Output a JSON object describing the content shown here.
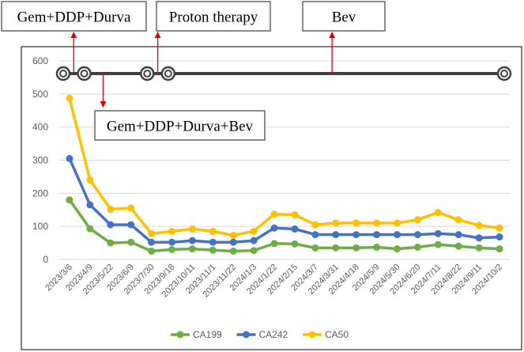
{
  "chart_data": {
    "type": "line",
    "title": "",
    "xlabel": "",
    "ylabel": "",
    "ylim": [
      0,
      600
    ],
    "yticks": [
      0,
      100,
      200,
      300,
      400,
      500,
      600
    ],
    "grid": true,
    "legend_position": "bottom",
    "categories": [
      "2023/3/6",
      "2023/4/9",
      "2023/5/22",
      "2023/6/9",
      "2023/7/30",
      "2023/9/18",
      "2023/10/11",
      "2023/11/1",
      "2023/11/22",
      "2024/1/3",
      "2024/1/22",
      "2024/2/15",
      "2024/3/7",
      "2024/3/31",
      "2024/4/18",
      "2024/5/9",
      "2024/5/30",
      "2024/6/20",
      "2024/7/11",
      "2024/8/22",
      "2024/9/11",
      "2024/10/2"
    ],
    "series": [
      {
        "name": "CA199",
        "color": "#70ad47",
        "values": [
          180,
          93,
          50,
          52,
          25,
          30,
          32,
          28,
          25,
          27,
          48,
          47,
          35,
          35,
          35,
          37,
          32,
          37,
          45,
          40,
          35,
          32
        ]
      },
      {
        "name": "CA242",
        "color": "#4472c4",
        "values": [
          305,
          165,
          105,
          105,
          52,
          52,
          57,
          52,
          52,
          57,
          95,
          92,
          75,
          75,
          75,
          75,
          75,
          75,
          78,
          75,
          65,
          68
        ]
      },
      {
        "name": "CA50",
        "color": "#ffc000",
        "values": [
          487,
          240,
          152,
          155,
          78,
          85,
          92,
          85,
          73,
          85,
          137,
          135,
          105,
          110,
          110,
          110,
          110,
          120,
          142,
          120,
          103,
          95
        ]
      }
    ],
    "timeline": {
      "markers": [
        0,
        1,
        4,
        5,
        21
      ],
      "callouts": [
        {
          "label": "Gem+DDP+Durva",
          "at": 0.5,
          "direction": "up"
        },
        {
          "label": "Gem+DDP+Durva+Bev",
          "at": 1.9,
          "direction": "down"
        },
        {
          "label": "Proton therapy",
          "at": 4.5,
          "direction": "up"
        },
        {
          "label": "Bev",
          "at": 12.8,
          "direction": "up"
        }
      ]
    }
  }
}
